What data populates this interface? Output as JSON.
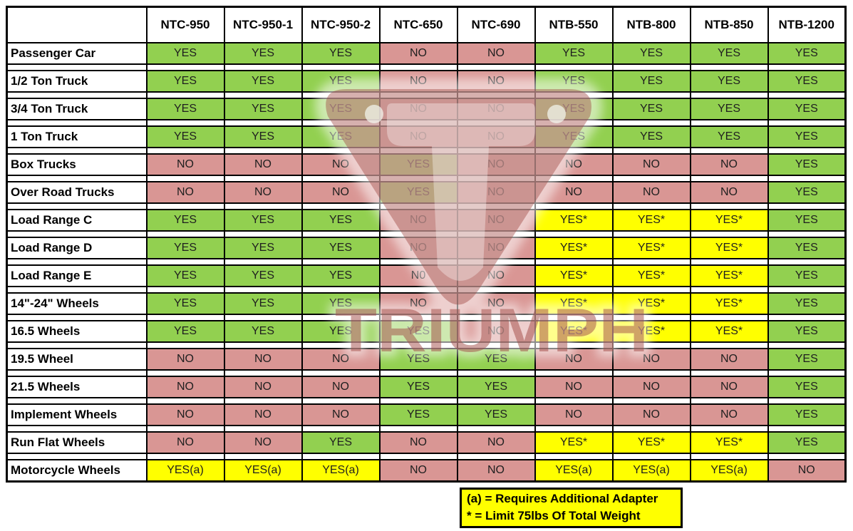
{
  "colors": {
    "yes_bg": "#92d050",
    "no_bg": "#d99694",
    "conditional_bg": "#ffff00",
    "legend_bg": "#ffff00",
    "grid": "#000000",
    "text": "#1f1f1f",
    "watermark_red": "#9e433e"
  },
  "chart_data": {
    "type": "table",
    "columns": [
      "NTC-950",
      "NTC-950-1",
      "NTC-950-2",
      "NTC-650",
      "NTC-690",
      "NTB-550",
      "NTB-800",
      "NTB-850",
      "NTB-1200"
    ],
    "rows": [
      {
        "label": "Passenger Car",
        "values": [
          "YES",
          "YES",
          "YES",
          "NO",
          "NO",
          "YES",
          "YES",
          "YES",
          "YES"
        ]
      },
      {
        "label": "1/2 Ton Truck",
        "values": [
          "YES",
          "YES",
          "YES",
          "NO",
          "NO",
          "YES",
          "YES",
          "YES",
          "YES"
        ]
      },
      {
        "label": "3/4 Ton Truck",
        "values": [
          "YES",
          "YES",
          "YES",
          "NO",
          "NO",
          "YES",
          "YES",
          "YES",
          "YES"
        ]
      },
      {
        "label": "1 Ton Truck",
        "values": [
          "YES",
          "YES",
          "YES",
          "NO",
          "NO",
          "YES",
          "YES",
          "YES",
          "YES"
        ]
      },
      {
        "label": "Box Trucks",
        "values": [
          "NO",
          "NO",
          "NO",
          "YES",
          "NO",
          "NO",
          "NO",
          "NO",
          "YES"
        ]
      },
      {
        "label": "Over Road Trucks",
        "values": [
          "NO",
          "NO",
          "NO",
          "YES",
          "NO",
          "NO",
          "NO",
          "NO",
          "YES"
        ]
      },
      {
        "label": "Load Range C",
        "values": [
          "YES",
          "YES",
          "YES",
          "NO",
          "NO",
          "YES*",
          "YES*",
          "YES*",
          "YES"
        ]
      },
      {
        "label": "Load Range D",
        "values": [
          "YES",
          "YES",
          "YES",
          "NO",
          "NO",
          "YES*",
          "YES*",
          "YES*",
          "YES"
        ]
      },
      {
        "label": "Load Range E",
        "values": [
          "YES",
          "YES",
          "YES",
          "N0",
          "NO",
          "YES*",
          "YES*",
          "YES*",
          "YES"
        ]
      },
      {
        "label": "14\"-24\" Wheels",
        "values": [
          "YES",
          "YES",
          "YES",
          "NO",
          "NO",
          "YES*",
          "YES*",
          "YES*",
          "YES"
        ]
      },
      {
        "label": "16.5 Wheels",
        "values": [
          "YES",
          "YES",
          "YES",
          "YES",
          "NO",
          "YES*",
          "YES*",
          "YES*",
          "YES"
        ]
      },
      {
        "label": "19.5 Wheel",
        "values": [
          "NO",
          "NO",
          "NO",
          "YES",
          "YES",
          "NO",
          "NO",
          "NO",
          "YES"
        ]
      },
      {
        "label": "21.5 Wheels",
        "values": [
          "NO",
          "NO",
          "NO",
          "YES",
          "YES",
          "NO",
          "NO",
          "NO",
          "YES"
        ]
      },
      {
        "label": "Implement Wheels",
        "values": [
          "NO",
          "NO",
          "NO",
          "YES",
          "YES",
          "NO",
          "NO",
          "NO",
          "YES"
        ]
      },
      {
        "label": "Run Flat Wheels",
        "values": [
          "NO",
          "NO",
          "YES",
          "NO",
          "NO",
          "YES*",
          "YES*",
          "YES*",
          "YES"
        ]
      },
      {
        "label": "Motorcycle Wheels",
        "values": [
          "YES(a)",
          "YES(a)",
          "YES(a)",
          "NO",
          "NO",
          "YES(a)",
          "YES(a)",
          "YES(a)",
          "NO"
        ]
      }
    ],
    "value_color_coding": {
      "YES": "green",
      "NO": "red",
      "YES*": "yellow",
      "YES(a)": "yellow"
    },
    "notes": [
      "(a) = Requires Additional Adapter",
      "* = Limit 75lbs Of Total Weight"
    ],
    "legend_position": "bottom",
    "grid": true
  },
  "legend": {
    "line1": "(a) = Requires Additional Adapter",
    "line2": "* = Limit 75lbs Of Total Weight"
  },
  "watermark": {
    "text": "TRIUMPH"
  }
}
